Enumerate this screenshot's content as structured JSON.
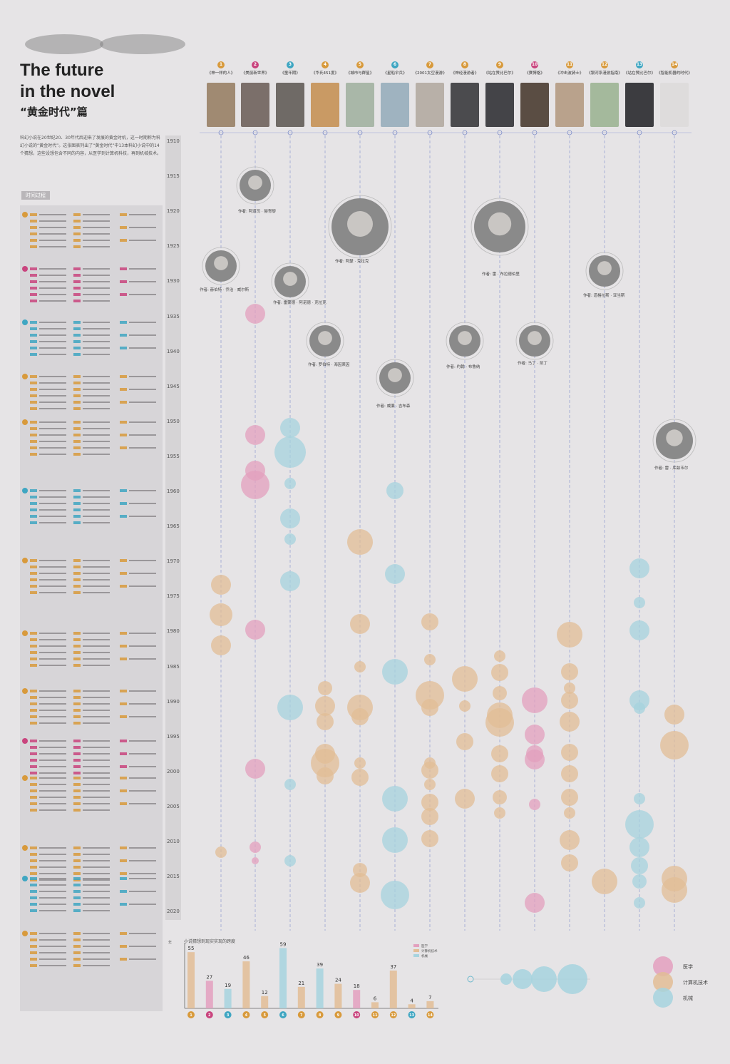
{
  "header": {
    "title_line1": "The future",
    "title_line2": "in the novel",
    "subtitle": "“黄金时代”篇",
    "intro": "科幻小说在20世纪20、30年代后迎来了发展的黄金时机，这一时期称为科幻小说的“黄金时代”。这张图表列出了“黄金时代”中13本科幻小说中的14个猜想，这些设想包含不同的内容，从医学到计算机科技，再到机械技术。",
    "timeline_label": "时间过程"
  },
  "colors": {
    "medicine": "#e3a0be",
    "computing": "#e2bd95",
    "machinery": "#a6d3de",
    "orange_badge": "#d89a3c",
    "pink_badge": "#c9447e",
    "blue_badge": "#3fa6c2"
  },
  "books": [
    {
      "num": "1",
      "title": "《神一样的人》",
      "color": "orange",
      "cover": "#a08a72"
    },
    {
      "num": "2",
      "title": "《美丽新世界》",
      "color": "pink",
      "cover": "#7b6f6a"
    },
    {
      "num": "3",
      "title": "《童年期》",
      "color": "blue",
      "cover": "#6f6a66"
    },
    {
      "num": "4",
      "title": "《华氏451度》",
      "color": "orange",
      "cover": "#c99a64"
    },
    {
      "num": "5",
      "title": "《城市与群星》",
      "color": "orange",
      "cover": "#a9b7a8"
    },
    {
      "num": "6",
      "title": "《星船伞兵》",
      "color": "blue",
      "cover": "#9fb3c0"
    },
    {
      "num": "7",
      "title": "《2001太空漫游》",
      "color": "orange",
      "cover": "#b8b0a8"
    },
    {
      "num": "8",
      "title": "《神经漫游者》",
      "color": "orange",
      "cover": "#4b4b4e"
    },
    {
      "num": "9",
      "title": "《站在赞比巴尔》",
      "color": "orange",
      "cover": "#444448"
    },
    {
      "num": "10",
      "title": "《赛博格》",
      "color": "pink",
      "cover": "#5a4d43"
    },
    {
      "num": "11",
      "title": "《冲击波骑士》",
      "color": "orange",
      "cover": "#b9a28c"
    },
    {
      "num": "12",
      "title": "《银河系漫游指南》",
      "color": "orange",
      "cover": "#a4b99c"
    },
    {
      "num": "13",
      "title": "《站在赞比巴尔》",
      "color": "blue",
      "cover": "#3c3c40"
    },
    {
      "num": "14",
      "title": "《智能机器的时代》",
      "color": "orange",
      "cover": "#dedcdc"
    }
  ],
  "authors": [
    {
      "caption": "作者: 赫伯特 · 乔治 · 威尔斯"
    },
    {
      "caption": "作者: 阿道司 · 赫胥黎"
    },
    {
      "caption": "作者: 雷蒙德 · 阿诺德 · 克拉克"
    },
    {
      "caption": "作者: 阿瑟 · 克拉克"
    },
    {
      "caption": "作者: 雷 · 布拉德伯里"
    },
    {
      "caption": "作者: 罗伯特 · 海因莱因"
    },
    {
      "caption": "作者: 威廉 · 吉布森"
    },
    {
      "caption": "作者: 约翰 · 布鲁纳"
    },
    {
      "caption": "作者: 马丁 · 凯丁"
    },
    {
      "caption": "作者: 道格拉斯 · 亚当斯"
    },
    {
      "caption": "作者: 雷 · 库兹韦尔"
    }
  ],
  "timeline": {
    "years": [
      "1910",
      "1915",
      "1920",
      "1925",
      "1930",
      "1935",
      "1940",
      "1945",
      "1950",
      "1955",
      "1960",
      "1965",
      "1970",
      "1975",
      "1980",
      "1985",
      "1990",
      "1995",
      "2000",
      "2005",
      "2010",
      "2015",
      "2020"
    ]
  },
  "legend": {
    "medicine": "医学",
    "computing": "计算机技术",
    "machinery": "机械"
  },
  "chart_data": {
    "type": "bar",
    "title": "小说猜想到现实实现的跨度",
    "categories": [
      "1",
      "2",
      "3",
      "4",
      "5",
      "6",
      "7",
      "8",
      "9",
      "10",
      "11",
      "12",
      "13",
      "14"
    ],
    "values": [
      55,
      27,
      19,
      46,
      12,
      59,
      21,
      39,
      24,
      18,
      6,
      37,
      4,
      7
    ],
    "series_colors": [
      "computing",
      "medicine",
      "machinery",
      "computing",
      "computing",
      "machinery",
      "computing",
      "machinery",
      "computing",
      "medicine",
      "computing",
      "computing",
      "computing",
      "computing"
    ],
    "ylim": [
      0,
      60
    ],
    "yticks": [
      "0",
      "15",
      "30",
      "45",
      "60"
    ],
    "legend": [
      "医学",
      "计算机技术",
      "机械"
    ],
    "y_unit": "年"
  }
}
